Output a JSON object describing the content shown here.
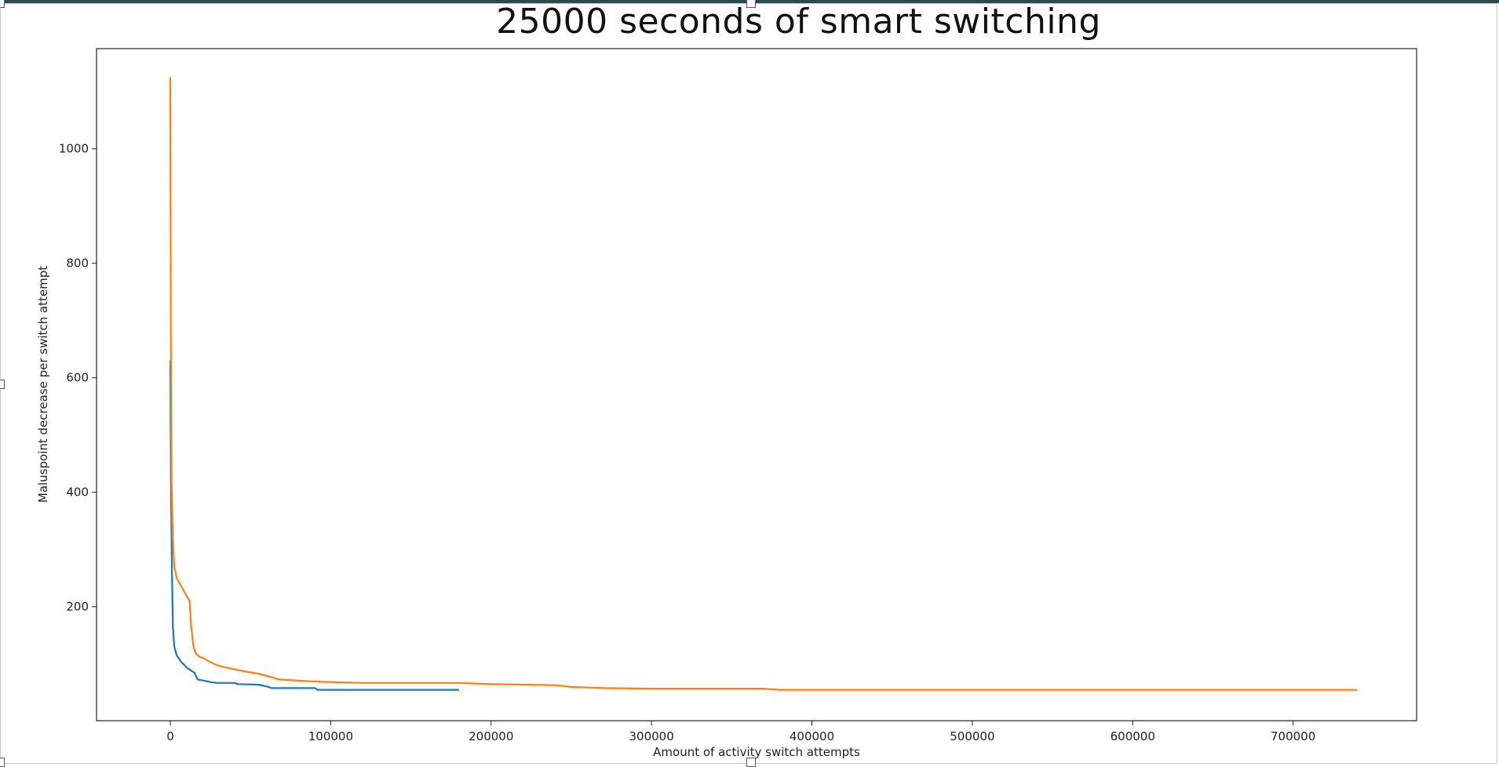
{
  "chart_data": {
    "type": "line",
    "title": "25000 seconds of smart switching",
    "xlabel": "Amount of activity switch attempts",
    "ylabel": "Maluspoint decrease per switch attempt",
    "xlim": [
      -46000,
      777000
    ],
    "ylim": [
      1,
      1175
    ],
    "xticks": [
      0,
      100000,
      200000,
      300000,
      400000,
      500000,
      600000,
      700000
    ],
    "xtick_labels": [
      "0",
      "100000",
      "200000",
      "300000",
      "400000",
      "500000",
      "600000",
      "700000"
    ],
    "yticks": [
      200,
      400,
      600,
      800,
      1000
    ],
    "ytick_labels": [
      "200",
      "400",
      "600",
      "800",
      "1000"
    ],
    "grid": false,
    "legend": "none",
    "series": [
      {
        "color": "#1f77b4",
        "x": [
          0,
          400,
          1000,
          1600,
          2500,
          4000,
          7000,
          11000,
          15000,
          17000,
          21000,
          26000,
          30000,
          40000,
          42000,
          55000,
          60000,
          63000,
          68000,
          90000,
          92000,
          180000
        ],
        "y": [
          630,
          420,
          260,
          165,
          130,
          115,
          103,
          92,
          85,
          73,
          71,
          68,
          67,
          67,
          65,
          64,
          61,
          58,
          58,
          58,
          55,
          55
        ]
      },
      {
        "color": "#ff7f0e",
        "x": [
          0,
          300,
          800,
          1500,
          2500,
          4000,
          6000,
          9000,
          11000,
          12000,
          13000,
          14500,
          16000,
          18000,
          21000,
          25000,
          30000,
          38000,
          45000,
          55000,
          62000,
          68000,
          80000,
          95000,
          120000,
          150000,
          180000,
          200000,
          220000,
          240000,
          250000,
          270000,
          300000,
          340000,
          370000,
          380000,
          450000,
          550000,
          650000,
          740000
        ],
        "y": [
          1125,
          700,
          420,
          320,
          270,
          250,
          240,
          225,
          215,
          210,
          165,
          130,
          118,
          113,
          110,
          103,
          97,
          92,
          88,
          83,
          78,
          73,
          71,
          69,
          67,
          67,
          67,
          65,
          64,
          63,
          60,
          58,
          57,
          57,
          57,
          55,
          55,
          55,
          55,
          55
        ]
      }
    ]
  }
}
